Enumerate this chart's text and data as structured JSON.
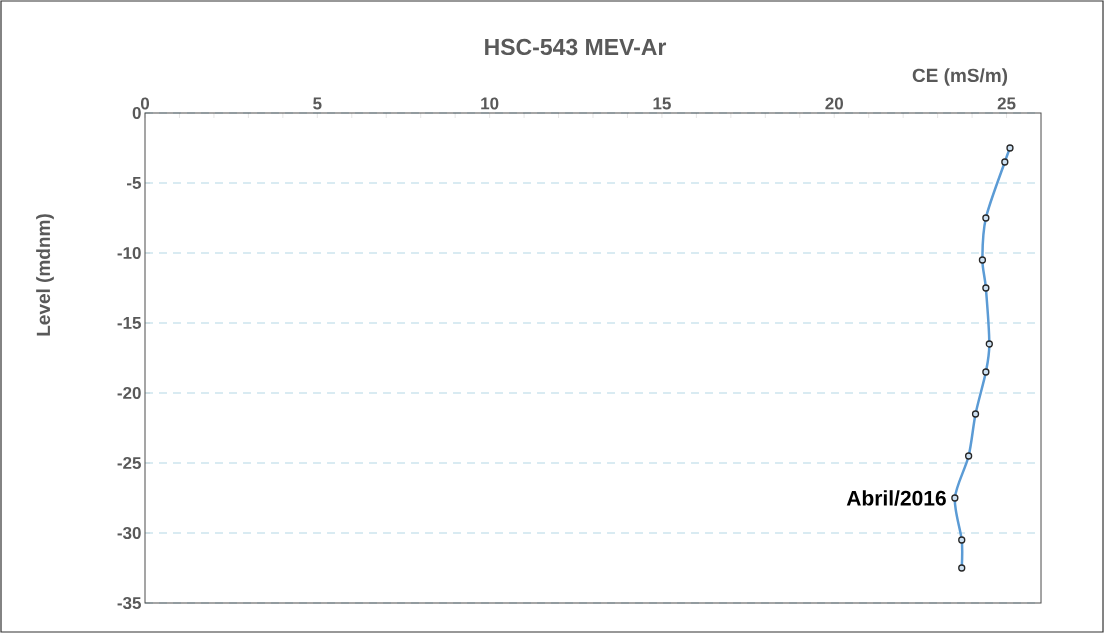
{
  "chart_data": {
    "type": "line",
    "title": "HSC-543  MEV-Ar",
    "xlabel": "CE (mS/m)",
    "ylabel": "Level (mdnm)",
    "x": [
      25.1,
      24.95,
      24.4,
      24.3,
      24.4,
      24.5,
      24.4,
      24.1,
      23.9,
      23.5,
      23.7,
      23.7
    ],
    "series": [
      {
        "color": "#5b9bd5",
        "values": [
          -2.5,
          -3.5,
          -7.5,
          -10.5,
          -12.5,
          -16.5,
          -18.5,
          -21.5,
          -24.5,
          -27.5,
          -30.5,
          -32.5
        ]
      }
    ],
    "marker": "circle",
    "line_style": "solid",
    "grid": "y",
    "xlim": [
      0,
      26
    ],
    "ylim": [
      -35,
      0
    ],
    "xticks": [
      0,
      {
        "value": 1,
        "label": null
      },
      {
        "value": 2,
        "label": null
      },
      {
        "value": 3,
        "label": null
      },
      {
        "value": 4,
        "label": null
      },
      5,
      {
        "value": 6,
        "label": null
      },
      {
        "value": 7,
        "label": null
      },
      {
        "value": 8,
        "label": null
      },
      {
        "value": 9,
        "label": null
      },
      10,
      {
        "value": 11,
        "label": null
      },
      {
        "value": 12,
        "label": null
      },
      {
        "value": 13,
        "label": null
      },
      {
        "value": 14,
        "label": null
      },
      15,
      {
        "value": 16,
        "label": null
      },
      {
        "value": 17,
        "label": null
      },
      {
        "value": 18,
        "label": null
      },
      {
        "value": 19,
        "label": null
      },
      20,
      {
        "value": 21,
        "label": null
      },
      {
        "value": 22,
        "label": null
      },
      {
        "value": 23,
        "label": null
      },
      {
        "value": 24,
        "label": null
      },
      25
    ],
    "yticks": [
      0,
      -5,
      -10,
      -15,
      -20,
      -25,
      -30,
      -35
    ],
    "annotations": [
      {
        "text": "Abril/2016",
        "x": 23.5,
        "y": -27.5
      }
    ]
  }
}
